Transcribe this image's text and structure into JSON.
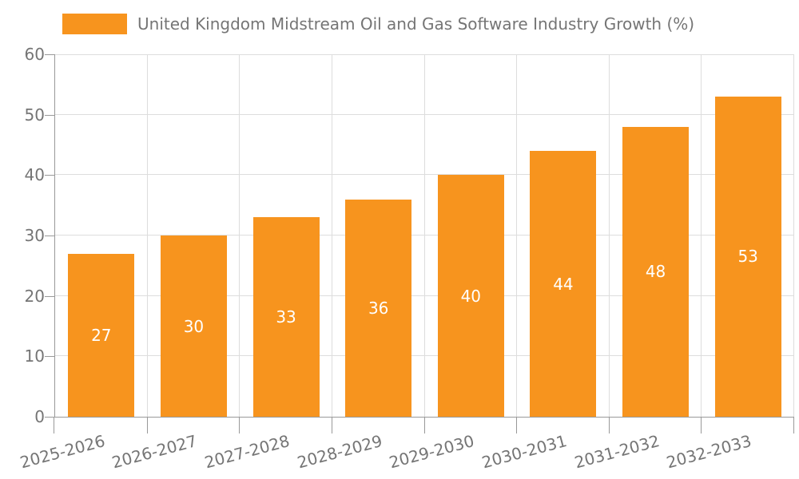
{
  "legend": {
    "label": "United Kingdom Midstream Oil and Gas Software Industry Growth (%)"
  },
  "chart_data": {
    "type": "bar",
    "title": "",
    "xlabel": "",
    "ylabel": "",
    "categories": [
      "2025-2026",
      "2026-2027",
      "2027-2028",
      "2028-2029",
      "2029-2030",
      "2030-2031",
      "2031-2032",
      "2032-2033"
    ],
    "series": [
      {
        "name": "United Kingdom Midstream Oil and Gas Software Industry Growth (%)",
        "values": [
          27,
          30,
          33,
          36,
          40,
          44,
          48,
          53
        ]
      }
    ],
    "ylim": [
      0,
      60
    ],
    "y_ticks": [
      0,
      10,
      20,
      30,
      40,
      50,
      60
    ],
    "grid": true,
    "legend_position": "top-left",
    "bar_value_labels": true,
    "x_label_rotation_deg": -15,
    "colors": {
      "bar": "#F7941E",
      "axis": "#999999",
      "grid": "#DDDDDD",
      "tick_label": "#757575",
      "value_label": "#FFFFFF",
      "background": "#FFFFFF"
    }
  }
}
